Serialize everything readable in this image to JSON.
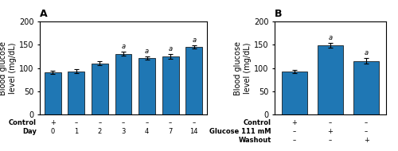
{
  "chart_data": [
    {
      "type": "bar",
      "title": "A",
      "ylabel": "Blood glucose\nlevel (mg/dL)",
      "values": [
        91,
        93,
        110,
        130,
        121,
        125,
        145
      ],
      "errors": [
        3,
        4,
        4,
        4,
        4,
        5,
        4
      ],
      "annotations": [
        null,
        null,
        null,
        "a",
        "a",
        "a",
        "a"
      ],
      "rows": [
        {
          "name": "Control",
          "labels": [
            "+",
            "–",
            "–",
            "–",
            "–",
            "–",
            "–"
          ]
        },
        {
          "name": "Day",
          "labels": [
            "0",
            "1",
            "2",
            "3",
            "4",
            "7",
            "14"
          ]
        }
      ],
      "ylim": [
        0,
        200
      ],
      "yticks": [
        0,
        50,
        100,
        150,
        200
      ]
    },
    {
      "type": "bar",
      "title": "B",
      "ylabel": "Blood glucose\nlevel (mg/dL)",
      "values": [
        92,
        148,
        115
      ],
      "errors": [
        3,
        5,
        6
      ],
      "annotations": [
        null,
        "a",
        "a"
      ],
      "rows": [
        {
          "name": "Control",
          "labels": [
            "+",
            "–",
            "–"
          ]
        },
        {
          "name": "Glucose 111 mM",
          "labels": [
            "–",
            "+",
            "–"
          ]
        },
        {
          "name": "Washout",
          "labels": [
            "–",
            "–",
            "+"
          ]
        }
      ],
      "ylim": [
        0,
        200
      ],
      "yticks": [
        0,
        50,
        100,
        150,
        200
      ]
    }
  ]
}
